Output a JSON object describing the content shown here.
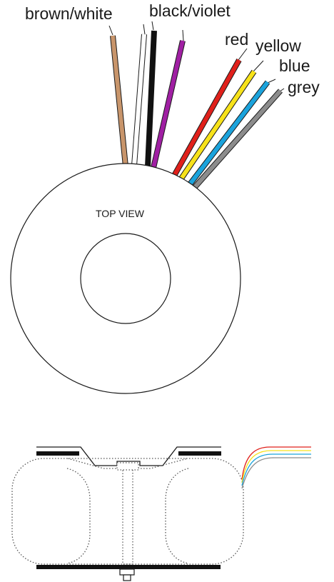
{
  "labels": {
    "brown_white": "brown/white",
    "black_violet": "black/violet",
    "red": "red",
    "yellow": "yellow",
    "blue": "blue",
    "grey": "grey",
    "top_view": "TOP VIEW"
  },
  "wire_colors": {
    "brown": "#c8956b",
    "white": "#ffffff",
    "black": "#111111",
    "violet": "#a01fa3",
    "red": "#e0201b",
    "yellow": "#f7e21a",
    "blue": "#1ba3dc",
    "grey": "#8c8c8c"
  }
}
